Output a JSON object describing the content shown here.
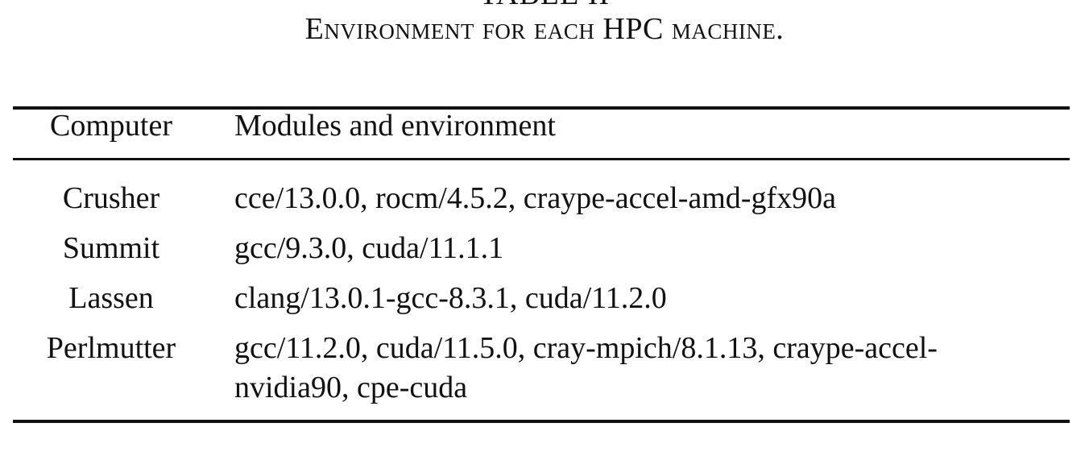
{
  "table": {
    "label": "TABLE II",
    "caption": "Environment for each HPC machine.",
    "headers": {
      "computer": "Computer",
      "modules": "Modules and environment"
    },
    "rows": [
      {
        "computer": "Crusher",
        "modules": "cce/13.0.0, rocm/4.5.2, craype-accel-amd-gfx90a"
      },
      {
        "computer": "Summit",
        "modules": "gcc/9.3.0, cuda/11.1.1"
      },
      {
        "computer": "Lassen",
        "modules": "clang/13.0.1-gcc-8.3.1, cuda/11.2.0"
      },
      {
        "computer": "Perlmutter",
        "modules_line1": "gcc/11.2.0, cuda/11.5.0, cray-mpich/8.1.13, craype-accel-",
        "modules_line2": "nvidia90, cpe-cuda"
      }
    ]
  }
}
